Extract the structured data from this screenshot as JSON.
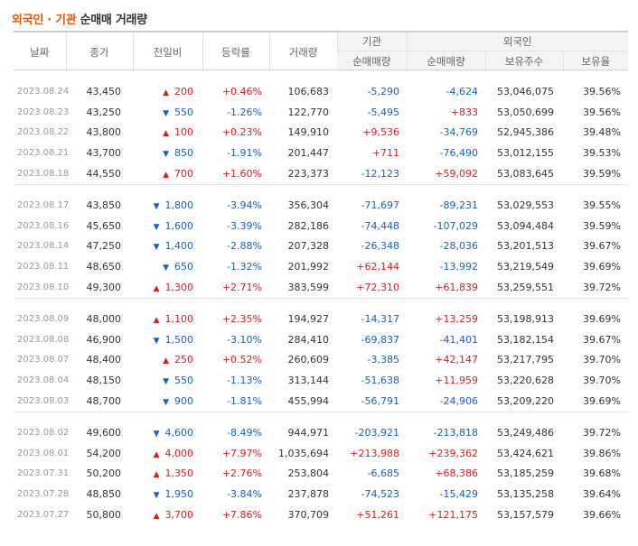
{
  "title": {
    "part1": "외국인 · 기관",
    "part2": " 순매매 거래량"
  },
  "headers": {
    "date": "날짜",
    "close": "종가",
    "change": "전일비",
    "rate": "등락률",
    "volume": "거래량",
    "inst_group": "기관",
    "inst_net": "순매매량",
    "foreign_group": "외국인",
    "foreign_net": "순매매량",
    "foreign_hold": "보유주수",
    "foreign_ratio": "보유율"
  },
  "groups": [
    [
      {
        "date": "2023.08.24",
        "close": "43,450",
        "dir": "up",
        "change": "200",
        "rate": "+0.46%",
        "volume": "106,683",
        "inst": "-5,290",
        "foreign": "-4,624",
        "hold": "53,046,075",
        "ratio": "39.56%"
      },
      {
        "date": "2023.08.23",
        "close": "43,250",
        "dir": "dn",
        "change": "550",
        "rate": "-1.26%",
        "volume": "122,770",
        "inst": "-5,495",
        "foreign": "+833",
        "hold": "53,050,699",
        "ratio": "39.56%"
      },
      {
        "date": "2023.08.22",
        "close": "43,800",
        "dir": "up",
        "change": "100",
        "rate": "+0.23%",
        "volume": "149,910",
        "inst": "+9,536",
        "foreign": "-34,769",
        "hold": "52,945,386",
        "ratio": "39.48%"
      },
      {
        "date": "2023.08.21",
        "close": "43,700",
        "dir": "dn",
        "change": "850",
        "rate": "-1.91%",
        "volume": "201,447",
        "inst": "+711",
        "foreign": "-76,490",
        "hold": "53,012,155",
        "ratio": "39.53%"
      },
      {
        "date": "2023.08.18",
        "close": "44,550",
        "dir": "up",
        "change": "700",
        "rate": "+1.60%",
        "volume": "223,373",
        "inst": "-12,123",
        "foreign": "+59,092",
        "hold": "53,083,645",
        "ratio": "39.59%"
      }
    ],
    [
      {
        "date": "2023.08.17",
        "close": "43,850",
        "dir": "dn",
        "change": "1,800",
        "rate": "-3.94%",
        "volume": "356,304",
        "inst": "-71,697",
        "foreign": "-89,231",
        "hold": "53,029,553",
        "ratio": "39.55%"
      },
      {
        "date": "2023.08.16",
        "close": "45,650",
        "dir": "dn",
        "change": "1,600",
        "rate": "-3.39%",
        "volume": "282,186",
        "inst": "-74,448",
        "foreign": "-107,029",
        "hold": "53,094,484",
        "ratio": "39.59%"
      },
      {
        "date": "2023.08.14",
        "close": "47,250",
        "dir": "dn",
        "change": "1,400",
        "rate": "-2.88%",
        "volume": "207,328",
        "inst": "-26,348",
        "foreign": "-28,036",
        "hold": "53,201,513",
        "ratio": "39.67%"
      },
      {
        "date": "2023.08.11",
        "close": "48,650",
        "dir": "dn",
        "change": "650",
        "rate": "-1.32%",
        "volume": "201,992",
        "inst": "+62,144",
        "foreign": "-13,992",
        "hold": "53,219,549",
        "ratio": "39.69%"
      },
      {
        "date": "2023.08.10",
        "close": "49,300",
        "dir": "up",
        "change": "1,300",
        "rate": "+2.71%",
        "volume": "383,599",
        "inst": "+72,310",
        "foreign": "+61,839",
        "hold": "53,259,551",
        "ratio": "39.72%"
      }
    ],
    [
      {
        "date": "2023.08.09",
        "close": "48,000",
        "dir": "up",
        "change": "1,100",
        "rate": "+2.35%",
        "volume": "194,927",
        "inst": "-14,317",
        "foreign": "+13,259",
        "hold": "53,198,913",
        "ratio": "39.69%"
      },
      {
        "date": "2023.08.08",
        "close": "46,900",
        "dir": "dn",
        "change": "1,500",
        "rate": "-3.10%",
        "volume": "284,410",
        "inst": "-69,837",
        "foreign": "-41,401",
        "hold": "53,182,154",
        "ratio": "39.67%"
      },
      {
        "date": "2023.08.07",
        "close": "48,400",
        "dir": "up",
        "change": "250",
        "rate": "+0.52%",
        "volume": "260,609",
        "inst": "-3,385",
        "foreign": "+42,147",
        "hold": "53,217,795",
        "ratio": "39.70%"
      },
      {
        "date": "2023.08.04",
        "close": "48,150",
        "dir": "dn",
        "change": "550",
        "rate": "-1.13%",
        "volume": "313,144",
        "inst": "-51,638",
        "foreign": "+11,959",
        "hold": "53,220,628",
        "ratio": "39.70%"
      },
      {
        "date": "2023.08.03",
        "close": "48,700",
        "dir": "dn",
        "change": "900",
        "rate": "-1.81%",
        "volume": "455,994",
        "inst": "-56,791",
        "foreign": "-24,906",
        "hold": "53,209,220",
        "ratio": "39.69%"
      }
    ],
    [
      {
        "date": "2023.08.02",
        "close": "49,600",
        "dir": "dn",
        "change": "4,600",
        "rate": "-8.49%",
        "volume": "944,971",
        "inst": "-203,921",
        "foreign": "-213,818",
        "hold": "53,249,486",
        "ratio": "39.72%"
      },
      {
        "date": "2023.08.01",
        "close": "54,200",
        "dir": "up",
        "change": "4,000",
        "rate": "+7.97%",
        "volume": "1,035,694",
        "inst": "+213,988",
        "foreign": "+239,362",
        "hold": "53,424,621",
        "ratio": "39.86%"
      },
      {
        "date": "2023.07.31",
        "close": "50,200",
        "dir": "up",
        "change": "1,350",
        "rate": "+2.76%",
        "volume": "253,804",
        "inst": "-6,685",
        "foreign": "+68,386",
        "hold": "53,185,259",
        "ratio": "39.68%"
      },
      {
        "date": "2023.07.28",
        "close": "48,850",
        "dir": "dn",
        "change": "1,950",
        "rate": "-3.84%",
        "volume": "237,878",
        "inst": "-74,523",
        "foreign": "-15,429",
        "hold": "53,135,258",
        "ratio": "39.64%"
      },
      {
        "date": "2023.07.27",
        "close": "50,800",
        "dir": "up",
        "change": "3,700",
        "rate": "+7.86%",
        "volume": "370,709",
        "inst": "+51,261",
        "foreign": "+121,175",
        "hold": "53,157,579",
        "ratio": "39.66%"
      }
    ]
  ],
  "icons": {
    "up": "up-triangle-icon",
    "dn": "down-triangle-icon"
  },
  "colors": {
    "up": "#d62020",
    "down": "#1a5fc4",
    "title_accent": "#e4580b"
  }
}
